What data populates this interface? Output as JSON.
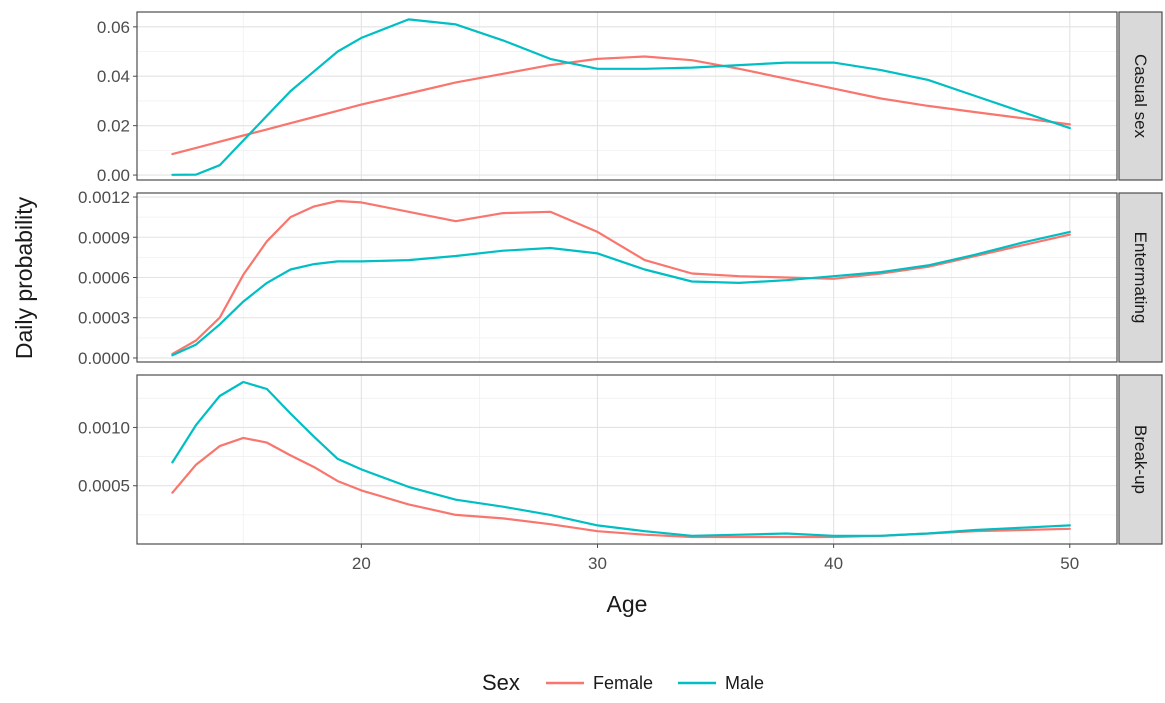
{
  "chart_data": {
    "type": "line",
    "xlabel": "Age",
    "ylabel": "Daily probability",
    "xlim": [
      10.5,
      52
    ],
    "x_ticks": [
      20,
      30,
      40,
      50
    ],
    "grid": true,
    "legend": {
      "title": "Sex",
      "position": "bottom",
      "entries": [
        "Female",
        "Male"
      ]
    },
    "colors": {
      "Female": "#F8766D",
      "Male": "#00BFC4"
    },
    "x": [
      12,
      13,
      14,
      15,
      16,
      17,
      18,
      19,
      20,
      22,
      24,
      26,
      28,
      30,
      32,
      34,
      36,
      38,
      40,
      42,
      44,
      46,
      48,
      50
    ],
    "panels": [
      {
        "label": "Casual sex",
        "ylim": [
          -0.002,
          0.066
        ],
        "y_ticks": [
          0,
          0.02,
          0.04,
          0.06
        ],
        "y_tick_labels": [
          "0.00",
          "0.02",
          "0.04",
          "0.06"
        ],
        "series": [
          {
            "name": "Female",
            "values": [
              0.0085,
              0.011,
              0.0135,
              0.016,
              0.0185,
              0.021,
              0.0235,
              0.026,
              0.0285,
              0.033,
              0.0375,
              0.041,
              0.0445,
              0.047,
              0.048,
              0.0465,
              0.043,
              0.039,
              0.035,
              0.031,
              0.028,
              0.0255,
              0.023,
              0.0205
            ]
          },
          {
            "name": "Male",
            "values": [
              0.0001,
              0.0002,
              0.004,
              0.014,
              0.024,
              0.034,
              0.042,
              0.05,
              0.0555,
              0.063,
              0.061,
              0.0545,
              0.047,
              0.043,
              0.043,
              0.0435,
              0.0445,
              0.0455,
              0.0455,
              0.0425,
              0.0385,
              0.032,
              0.0255,
              0.019
            ]
          }
        ]
      },
      {
        "label": "Entermating",
        "ylim": [
          -3e-05,
          0.00123
        ],
        "y_ticks": [
          0,
          0.0003,
          0.0006,
          0.0009,
          0.0012
        ],
        "y_tick_labels": [
          "0.0000",
          "0.0003",
          "0.0006",
          "0.0009",
          "0.0012"
        ],
        "series": [
          {
            "name": "Female",
            "values": [
              3e-05,
              0.00013,
              0.0003,
              0.00062,
              0.00087,
              0.00105,
              0.00113,
              0.00117,
              0.00116,
              0.00109,
              0.00102,
              0.00108,
              0.00109,
              0.00094,
              0.00073,
              0.00063,
              0.00061,
              0.0006,
              0.00059,
              0.00063,
              0.00068,
              0.00076,
              0.00084,
              0.00092
            ]
          },
          {
            "name": "Male",
            "values": [
              2e-05,
              0.0001,
              0.00025,
              0.00042,
              0.00056,
              0.00066,
              0.0007,
              0.00072,
              0.00072,
              0.00073,
              0.00076,
              0.0008,
              0.00082,
              0.00078,
              0.00066,
              0.00057,
              0.00056,
              0.00058,
              0.00061,
              0.00064,
              0.00069,
              0.00077,
              0.00086,
              0.00094
            ]
          }
        ]
      },
      {
        "label": "Break-up",
        "ylim": [
          0,
          0.00145
        ],
        "y_ticks": [
          0.0005,
          0.001
        ],
        "y_tick_labels": [
          "0.0005",
          "0.0010"
        ],
        "series": [
          {
            "name": "Female",
            "values": [
              0.00044,
              0.00068,
              0.00084,
              0.00091,
              0.00087,
              0.00076,
              0.00066,
              0.00054,
              0.00046,
              0.00034,
              0.00025,
              0.00022,
              0.00017,
              0.00011,
              8e-05,
              6e-05,
              6e-05,
              6e-05,
              6e-05,
              7e-05,
              9e-05,
              0.00011,
              0.00012,
              0.00013
            ]
          },
          {
            "name": "Male",
            "values": [
              0.0007,
              0.00102,
              0.00127,
              0.00139,
              0.00133,
              0.00112,
              0.00092,
              0.00073,
              0.00064,
              0.00049,
              0.00038,
              0.00032,
              0.00025,
              0.00016,
              0.00011,
              7e-05,
              8e-05,
              9e-05,
              7e-05,
              7e-05,
              9e-05,
              0.00012,
              0.00014,
              0.00016
            ]
          }
        ]
      }
    ]
  }
}
